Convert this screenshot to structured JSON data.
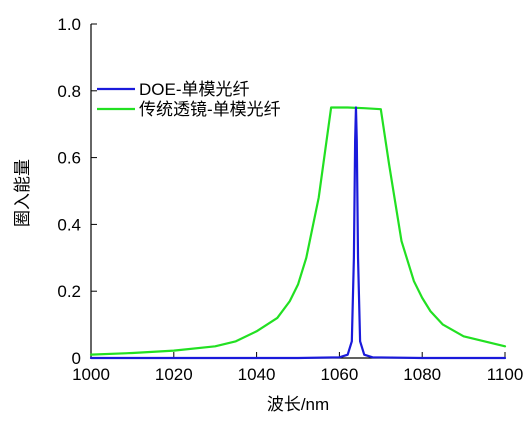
{
  "chart_data": {
    "type": "line",
    "xlabel": "波长/nm",
    "ylabel": "圈入能量",
    "xlim": [
      1000,
      1100
    ],
    "ylim": [
      0,
      1.0
    ],
    "x_ticks": [
      1000,
      1020,
      1040,
      1060,
      1080,
      1100
    ],
    "y_ticks": [
      0,
      0.2,
      0.4,
      0.6,
      0.8,
      1.0
    ],
    "x_tick_labels": [
      "1000",
      "1020",
      "1040",
      "1060",
      "1080",
      "1100"
    ],
    "y_tick_labels": [
      "0",
      "0.2",
      "0.4",
      "0.6",
      "0.8",
      "1.0"
    ],
    "grid": false,
    "legend_position": "top-left",
    "series": [
      {
        "name": "DOE-单模光纤",
        "color": "#1a1adb",
        "x": [
          1000,
          1050,
          1060,
          1062,
          1063,
          1063.5,
          1063.8,
          1064,
          1064.2,
          1064.5,
          1065,
          1066,
          1068,
          1080,
          1100
        ],
        "y": [
          0.0,
          0.0,
          0.002,
          0.01,
          0.05,
          0.3,
          0.65,
          0.75,
          0.65,
          0.3,
          0.05,
          0.01,
          0.002,
          0.0,
          0.0
        ]
      },
      {
        "name": "传统透镜-单模光纤",
        "color": "#22e022",
        "x": [
          1000,
          1010,
          1020,
          1030,
          1035,
          1040,
          1045,
          1048,
          1050,
          1052,
          1055,
          1058,
          1062,
          1066,
          1070,
          1072,
          1075,
          1078,
          1080,
          1082,
          1085,
          1090,
          1100
        ],
        "y": [
          0.01,
          0.015,
          0.022,
          0.035,
          0.05,
          0.08,
          0.12,
          0.17,
          0.22,
          0.3,
          0.48,
          0.75,
          0.75,
          0.748,
          0.745,
          0.58,
          0.35,
          0.23,
          0.18,
          0.14,
          0.1,
          0.065,
          0.035
        ]
      }
    ]
  }
}
